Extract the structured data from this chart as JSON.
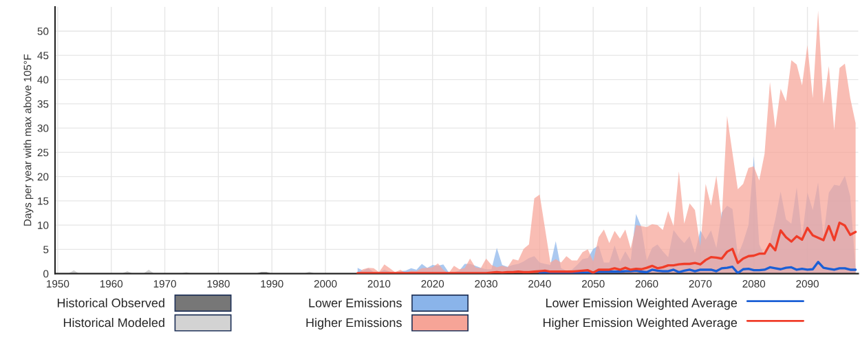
{
  "chart_data": {
    "type": "area",
    "ylabel": "Days per year with max above 105°F",
    "x": [
      2006,
      2007,
      2008,
      2009,
      2010,
      2011,
      2012,
      2013,
      2014,
      2015,
      2016,
      2017,
      2018,
      2019,
      2020,
      2021,
      2022,
      2023,
      2024,
      2025,
      2026,
      2027,
      2028,
      2029,
      2030,
      2031,
      2032,
      2033,
      2034,
      2035,
      2036,
      2037,
      2038,
      2039,
      2040,
      2041,
      2042,
      2043,
      2044,
      2045,
      2046,
      2047,
      2048,
      2049,
      2050,
      2051,
      2052,
      2053,
      2054,
      2055,
      2056,
      2057,
      2058,
      2059,
      2060,
      2061,
      2062,
      2063,
      2064,
      2065,
      2066,
      2067,
      2068,
      2069,
      2070,
      2071,
      2072,
      2073,
      2074,
      2075,
      2076,
      2077,
      2078,
      2079,
      2080,
      2081,
      2082,
      2083,
      2084,
      2085,
      2086,
      2087,
      2088,
      2089,
      2090,
      2091,
      2092,
      2093,
      2094,
      2095,
      2096,
      2097,
      2098,
      2099
    ],
    "series": [
      {
        "name": "Historical Observed",
        "color": "#777777",
        "x": [
          1950,
          1987,
          1988,
          1989,
          1990,
          2005
        ],
        "values": [
          0,
          0,
          0.3,
          0.3,
          0,
          0
        ]
      },
      {
        "name": "Historical Modeled",
        "color": "#d3d3d3",
        "x": [
          1950,
          1952,
          1953,
          1954,
          1962,
          1963,
          1964,
          1966,
          1967,
          1968,
          1973,
          1974,
          1975,
          1996,
          1997,
          1998,
          2005
        ],
        "values": [
          0,
          0,
          0.7,
          0,
          0,
          0.5,
          0,
          0,
          0.8,
          0,
          0,
          0.3,
          0,
          0,
          0.4,
          0,
          0
        ]
      },
      {
        "name": "Lower Emissions",
        "color": "#8ab4ea",
        "values": [
          1.2,
          0.6,
          1.1,
          0.3,
          0.3,
          0.8,
          0.4,
          0.1,
          0.5,
          0.6,
          1.1,
          0.8,
          2,
          1.2,
          1.8,
          1.6,
          1.9,
          0.3,
          0.3,
          0.6,
          2,
          2,
          1.6,
          1.2,
          0.9,
          0.9,
          5.3,
          1.8,
          1.4,
          1.8,
          2,
          2.5,
          3.2,
          3.6,
          2.3,
          2,
          1.8,
          6.7,
          1.1,
          0.6,
          0.8,
          1.8,
          3,
          3.2,
          5.1,
          5.8,
          2.3,
          2.3,
          5.8,
          2.5,
          4.6,
          2.7,
          12.3,
          9.6,
          2.7,
          5.3,
          6,
          4.6,
          3.4,
          9,
          7.5,
          6.3,
          7.7,
          4.2,
          8.9,
          7,
          8.9,
          5.3,
          12.6,
          14,
          13.3,
          3.7,
          6.5,
          10,
          24.2,
          6,
          3.7,
          6.5,
          11.2,
          16.9,
          11.2,
          10.3,
          17.8,
          7.5,
          16.7,
          13.1,
          18.8,
          7.5,
          16.7,
          18.3,
          18.1,
          20.2,
          15.9,
          1
        ]
      },
      {
        "name": "Higher Emissions",
        "color": "#f6a497",
        "values": [
          0,
          0.9,
          1.2,
          1.1,
          0.3,
          1.9,
          1.1,
          0.3,
          0.8,
          0.1,
          0.6,
          0.5,
          1.1,
          1.2,
          1.3,
          2.1,
          0.8,
          0.1,
          1.6,
          0.9,
          1.1,
          3.1,
          1.3,
          1.1,
          3.1,
          1.8,
          1.3,
          1.6,
          1.3,
          3,
          2.7,
          5.1,
          6,
          15.5,
          16.3,
          9.3,
          2.3,
          3,
          2.3,
          3.6,
          2.7,
          2.7,
          4.4,
          5,
          2.5,
          7.5,
          9.1,
          6.3,
          8.8,
          7.2,
          9.1,
          5.2,
          10,
          9.8,
          9.6,
          10.2,
          10,
          9,
          12.9,
          9.8,
          21.1,
          10.3,
          14.5,
          13.1,
          5.6,
          18.5,
          14,
          20.2,
          11.2,
          32.5,
          24.9,
          17.4,
          18.5,
          21.8,
          22.1,
          19.2,
          24.7,
          39.5,
          29.9,
          38.1,
          35.5,
          44,
          43.1,
          38.8,
          47.1,
          36.2,
          54.2,
          35,
          42.8,
          29.6,
          42.4,
          43.3,
          36.2,
          31
        ]
      },
      {
        "name": "Lower Emission Weighted Average",
        "type": "line",
        "color": "#1a5fd6",
        "values": [
          null,
          null,
          null,
          null,
          null,
          null,
          null,
          null,
          null,
          null,
          null,
          null,
          null,
          null,
          null,
          null,
          null,
          null,
          null,
          null,
          null,
          null,
          null,
          null,
          null,
          null,
          null,
          null,
          null,
          null,
          null,
          null,
          null,
          null,
          0.2,
          0.2,
          0.2,
          0.2,
          0.2,
          0.2,
          0.2,
          0.2,
          0.2,
          0.2,
          0.2,
          0.4,
          0.4,
          0.4,
          0.4,
          0.4,
          0.5,
          0.5,
          0.6,
          0.4,
          0.3,
          0.8,
          0.6,
          0.5,
          0.5,
          0.8,
          0.3,
          0.6,
          0.8,
          0.5,
          0.8,
          0.8,
          0.8,
          0.5,
          1.1,
          1.2,
          1.4,
          0.1,
          0.9,
          1,
          0.7,
          0.7,
          0.8,
          1.3,
          1.1,
          0.9,
          1.2,
          1.3,
          0.8,
          1,
          0.8,
          0.9,
          2.4,
          1.2,
          1,
          0.8,
          1.1,
          1.1,
          0.8,
          0.8
        ]
      },
      {
        "name": "Higher Emission Weighted Average",
        "type": "line",
        "color": "#f03c28",
        "values": [
          0.1,
          0.1,
          0.1,
          0.1,
          0.1,
          0.1,
          0.1,
          0.1,
          0.1,
          0.1,
          0.1,
          0.1,
          0.1,
          0.1,
          0.1,
          0.1,
          0.1,
          0.1,
          0.1,
          0.1,
          0.1,
          0.1,
          0.1,
          0.1,
          0.1,
          0.2,
          0.3,
          0.2,
          0.3,
          0.3,
          0.4,
          0.3,
          0.3,
          0.4,
          0.5,
          0.6,
          0.4,
          0.4,
          0.4,
          0.4,
          0.4,
          0.5,
          0.6,
          0.7,
          0.2,
          0.8,
          0.8,
          0.8,
          1.1,
          0.8,
          1.2,
          0.8,
          1,
          0.9,
          1.2,
          1.6,
          1.1,
          1.3,
          1.7,
          1.7,
          1.9,
          2,
          2,
          2.2,
          1.9,
          2.8,
          3.4,
          3.3,
          3.1,
          4.5,
          5.1,
          2.2,
          3.1,
          3.6,
          3.7,
          4.1,
          4.1,
          6.1,
          4.8,
          8.9,
          7.5,
          6.6,
          7.7,
          7,
          9.4,
          7.9,
          7.4,
          6.9,
          9.8,
          6.9,
          10.5,
          9.9,
          8,
          8.6
        ]
      }
    ],
    "xlim": [
      1949.5,
      2099.5
    ],
    "ylim": [
      0,
      55
    ],
    "xticks": [
      1950,
      1960,
      1970,
      1980,
      1990,
      2000,
      2010,
      2020,
      2030,
      2040,
      2050,
      2060,
      2070,
      2080,
      2090
    ],
    "yticks": [
      0,
      5,
      10,
      15,
      20,
      25,
      30,
      35,
      40,
      45,
      50
    ],
    "grid": true,
    "legend": "bottom",
    "line_style": "solid"
  }
}
